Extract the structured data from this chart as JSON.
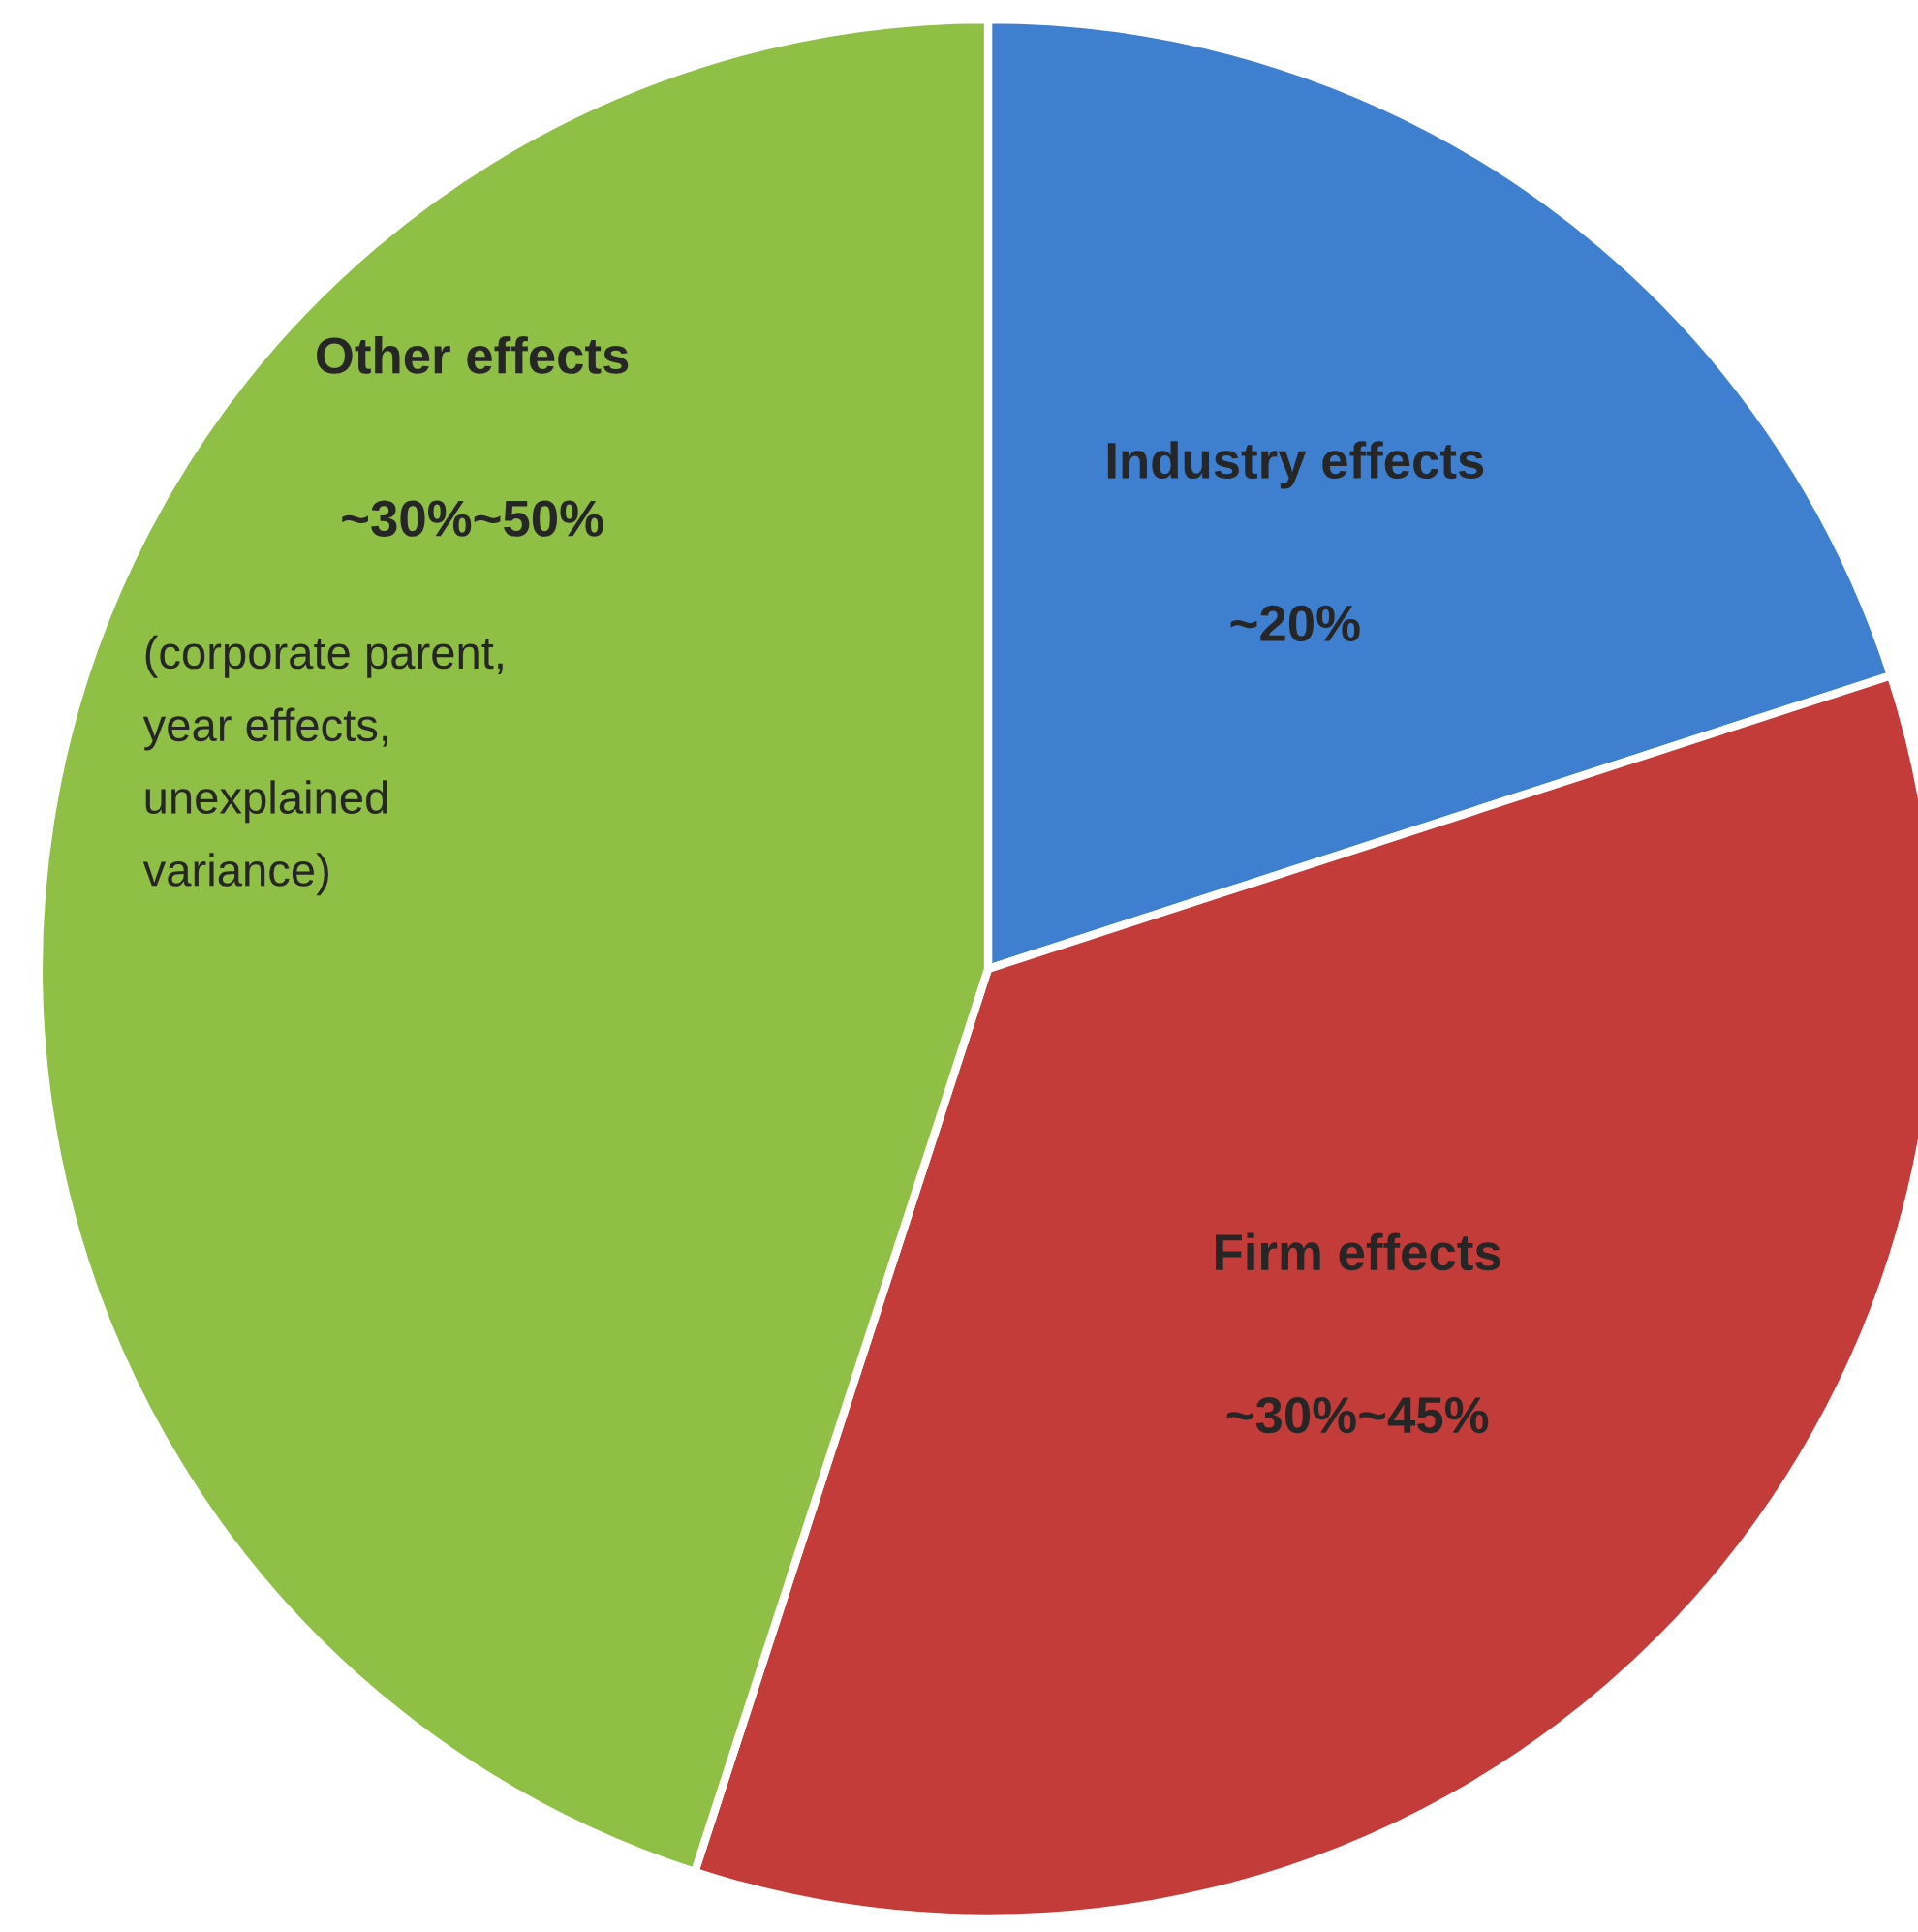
{
  "chart_data": {
    "type": "pie",
    "categories": [
      "Industry effects",
      "Firm effects",
      "Other effects"
    ],
    "values": [
      20,
      35,
      45
    ],
    "colors": [
      "#3f7fcf",
      "#c43c3a",
      "#8fbf45"
    ],
    "annotations": [
      "~20%",
      "~30%~45%",
      "~30%~50%",
      "(corporate parent,\nyear effects,\nunexplained\nvariance)"
    ]
  }
}
